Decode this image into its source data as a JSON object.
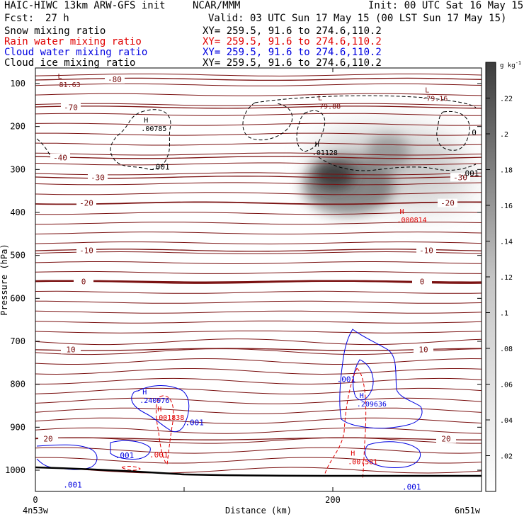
{
  "header": {
    "title_left": "HAIC-HIWC 13km ARW-GFS init",
    "title_center": "NCAR/MMM",
    "init": "Init: 00 UTC Sat 16 May 15",
    "fcst": "Fcst:",
    "fcst_value": "27 h",
    "valid": "Valid: 03 UTC Sun 17 May 15 (00 LST Sun 17 May 15)",
    "fields": [
      {
        "name": "Snow mixing ratio",
        "xy": "XY= 259.5, 91.6 to 274.6,110.2",
        "color": "#000000"
      },
      {
        "name": "Rain water mixing ratio",
        "xy": "XY= 259.5, 91.6 to 274.6,110.2",
        "color": "#e00000"
      },
      {
        "name": "Cloud water mixing ratio",
        "xy": "XY= 259.5, 91.6 to 274.6,110.2",
        "color": "#0000e0"
      },
      {
        "name": "Cloud ice mixing ratio",
        "xy": "XY= 259.5, 91.6 to 274.6,110.2",
        "color": "#000000"
      }
    ]
  },
  "colorbar": {
    "unit": "g kg",
    "unit_sup": "-1",
    "ticks": [
      ".02",
      ".04",
      ".06",
      ".08",
      ".1",
      ".12",
      ".14",
      ".16",
      ".18",
      ".2",
      ".22"
    ]
  },
  "chart_data": {
    "type": "heatmap",
    "title": "HAIC-HIWC 13km ARW-GFS init",
    "xlabel": "Distance (km)",
    "ylabel": "Pressure (hPa)",
    "xlim": [
      0,
      300
    ],
    "ylim": [
      1050,
      50
    ],
    "x_ticks": [
      "0",
      "200"
    ],
    "y_ticks": [
      "100",
      "200",
      "300",
      "400",
      "500",
      "600",
      "700",
      "800",
      "900",
      "1000"
    ],
    "x_endpoint_labels": [
      "4n53w",
      "6n51w"
    ],
    "grid": false,
    "legend": "header",
    "temperature_contours_C": [
      {
        "label": "-80",
        "p": 90
      },
      {
        "label": "-70",
        "p": 155
      },
      {
        "label": "-40",
        "p": 272
      },
      {
        "label": "-30",
        "p": 318
      },
      {
        "label": "-20",
        "p": 378
      },
      {
        "label": "-10",
        "p": 488
      },
      {
        "label": "0",
        "p": 561
      },
      {
        "label": "10",
        "p": 719
      },
      {
        "label": "20",
        "p": 927
      }
    ],
    "extrema_labels": [
      {
        "type": "L",
        "value": "-81.63",
        "x": 15,
        "p": 105
      },
      {
        "type": "L",
        "value": "-79.88",
        "x": 190,
        "p": 155
      },
      {
        "type": "L",
        "value": "-79.16",
        "x": 262,
        "p": 137
      },
      {
        "type": "H",
        "value": ".00785",
        "x": 73,
        "p": 207
      },
      {
        "type": "H",
        "value": ".01128",
        "x": 188,
        "p": 263
      },
      {
        "type": "H",
        "value": ".000814",
        "x": 245,
        "p": 420
      },
      {
        "type": "H",
        "value": ".240976",
        "x": 72,
        "p": 840
      },
      {
        "type": "H",
        "value": ".001838",
        "x": 82,
        "p": 880
      },
      {
        "type": "H",
        "value": ".209636",
        "x": 218,
        "p": 848
      },
      {
        "type": "H",
        "value": ".007581",
        "x": 212,
        "p": 983
      }
    ],
    "contour_labels": [
      {
        "text": ".001",
        "x": 84,
        "p": 300,
        "color": "#000000"
      },
      {
        "text": ".001",
        "x": 292,
        "p": 315,
        "color": "#000000"
      },
      {
        "text": "0",
        "x": 295,
        "p": 220,
        "color": "#000000"
      },
      {
        "text": ".001",
        "x": 107,
        "p": 895,
        "color": "#0000e0"
      },
      {
        "text": ".001",
        "x": 60,
        "p": 972,
        "color": "#0000e0"
      },
      {
        "text": ".001",
        "x": 25,
        "p": 1040,
        "color": "#0000e0"
      },
      {
        "text": ".001",
        "x": 209,
        "p": 795,
        "color": "#0000e0"
      },
      {
        "text": ".001",
        "x": 253,
        "p": 1045,
        "color": "#0000e0"
      },
      {
        "text": ".001",
        "x": 83,
        "p": 970,
        "color": "#e00000"
      }
    ],
    "snow_max_g_per_kg": 0.22,
    "snow_max_location": {
      "x": 212,
      "p": 318
    }
  }
}
